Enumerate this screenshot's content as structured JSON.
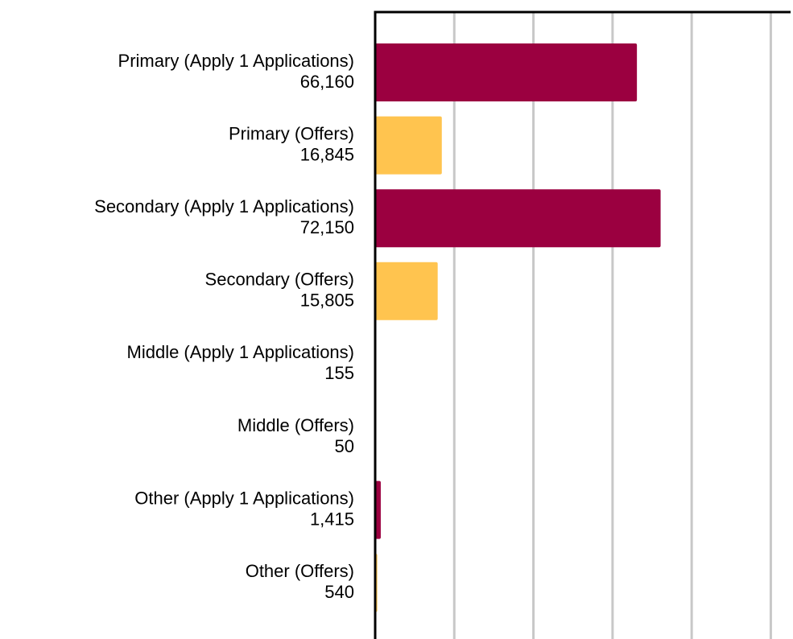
{
  "chart_data": {
    "type": "barh",
    "categories": [
      "Primary (Apply 1 Applications)",
      "Primary (Offers)",
      "Secondary (Apply 1 Applications)",
      "Secondary (Offers)",
      "Middle (Apply 1 Applications)",
      "Middle (Offers)",
      "Other (Apply 1 Applications)",
      "Other (Offers)"
    ],
    "values": [
      66160,
      16845,
      72150,
      15805,
      155,
      50,
      1415,
      540
    ],
    "value_labels": [
      "66,160",
      "16,845",
      "72,150",
      "15,805",
      "155",
      "50",
      "1,415",
      "540"
    ],
    "colors": [
      "#9b0040",
      "#ffc44f",
      "#9b0040",
      "#ffc44f",
      "#9b0040",
      "#ffc44f",
      "#9b0040",
      "#ffc44f"
    ],
    "xlim": [
      0,
      105000
    ],
    "xticks": [
      0,
      20000,
      40000,
      60000,
      80000,
      100000
    ],
    "grid": true
  }
}
